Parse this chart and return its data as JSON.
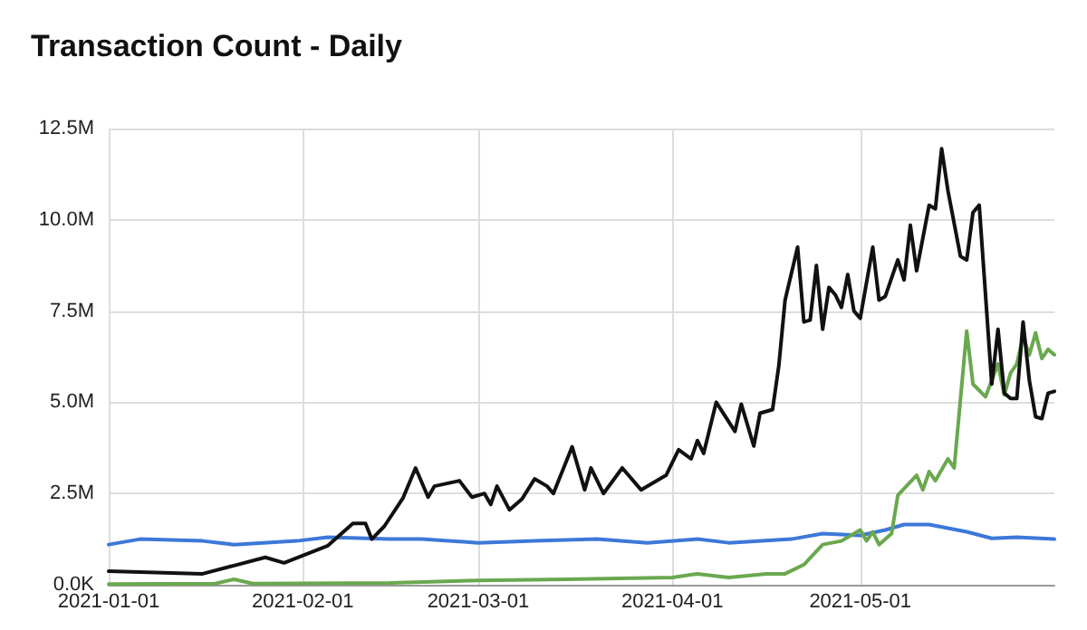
{
  "chart_data": {
    "type": "line",
    "title": "Transaction Count - Daily",
    "xlim": [
      "2021-01-01",
      "2021-06-01"
    ],
    "xticks": [
      "2021-01-01",
      "2021-02-01",
      "2021-03-01",
      "2021-04-01",
      "2021-05-01"
    ],
    "ylim": [
      0,
      12500000
    ],
    "yticks": [
      {
        "value": 0,
        "label": "0.0K"
      },
      {
        "value": 2500000,
        "label": "2.5M"
      },
      {
        "value": 5000000,
        "label": "5.0M"
      },
      {
        "value": 7500000,
        "label": "7.5M"
      },
      {
        "value": 10000000,
        "label": "10.0M"
      },
      {
        "value": 12500000,
        "label": "12.5M"
      }
    ],
    "grid": true,
    "marker": "none",
    "line_style": "solid",
    "series": [
      {
        "color": "#3c78d8",
        "x": [
          "2021-01-01",
          "2021-01-06",
          "2021-01-16",
          "2021-01-21",
          "2021-01-31",
          "2021-02-05",
          "2021-02-15",
          "2021-02-20",
          "2021-03-01",
          "2021-03-10",
          "2021-03-20",
          "2021-03-28",
          "2021-04-05",
          "2021-04-10",
          "2021-04-20",
          "2021-04-25",
          "2021-05-01",
          "2021-05-05",
          "2021-05-08",
          "2021-05-12",
          "2021-05-18",
          "2021-05-22",
          "2021-05-26",
          "2021-06-01"
        ],
        "values": [
          1100000,
          1250000,
          1200000,
          1100000,
          1200000,
          1300000,
          1250000,
          1250000,
          1150000,
          1200000,
          1250000,
          1150000,
          1250000,
          1150000,
          1250000,
          1400000,
          1350000,
          1500000,
          1650000,
          1650000,
          1450000,
          1270000,
          1300000,
          1250000
        ]
      },
      {
        "color": "#6aa84f",
        "x": [
          "2021-01-01",
          "2021-01-18",
          "2021-01-21",
          "2021-01-24",
          "2021-02-15",
          "2021-03-01",
          "2021-03-15",
          "2021-04-01",
          "2021-04-05",
          "2021-04-10",
          "2021-04-16",
          "2021-04-19",
          "2021-04-22",
          "2021-04-25",
          "2021-04-28",
          "2021-05-01",
          "2021-05-02",
          "2021-05-03",
          "2021-05-04",
          "2021-05-06",
          "2021-05-07",
          "2021-05-10",
          "2021-05-11",
          "2021-05-12",
          "2021-05-13",
          "2021-05-15",
          "2021-05-16",
          "2021-05-18",
          "2021-05-19",
          "2021-05-21",
          "2021-05-23",
          "2021-05-24",
          "2021-05-25",
          "2021-05-26",
          "2021-05-27",
          "2021-05-28",
          "2021-05-29",
          "2021-05-30",
          "2021-05-31",
          "2021-06-01"
        ],
        "values": [
          20000,
          30000,
          150000,
          30000,
          50000,
          120000,
          150000,
          200000,
          300000,
          200000,
          300000,
          300000,
          550000,
          1100000,
          1200000,
          1500000,
          1200000,
          1450000,
          1100000,
          1400000,
          2450000,
          3000000,
          2600000,
          3100000,
          2850000,
          3450000,
          3200000,
          6950000,
          5500000,
          5150000,
          6050000,
          5200000,
          5800000,
          6050000,
          6800000,
          6300000,
          6900000,
          6200000,
          6450000,
          6300000
        ]
      },
      {
        "color": "#111111",
        "x": [
          "2021-01-01",
          "2021-01-16",
          "2021-01-26",
          "2021-01-29",
          "2021-02-05",
          "2021-02-09",
          "2021-02-11",
          "2021-02-12",
          "2021-02-14",
          "2021-02-17",
          "2021-02-19",
          "2021-02-21",
          "2021-02-22",
          "2021-02-26",
          "2021-02-28",
          "2021-03-02",
          "2021-03-03",
          "2021-03-04",
          "2021-03-06",
          "2021-03-08",
          "2021-03-10",
          "2021-03-12",
          "2021-03-13",
          "2021-03-16",
          "2021-03-18",
          "2021-03-19",
          "2021-03-21",
          "2021-03-24",
          "2021-03-27",
          "2021-03-31",
          "2021-04-02",
          "2021-04-04",
          "2021-04-05",
          "2021-04-06",
          "2021-04-08",
          "2021-04-11",
          "2021-04-12",
          "2021-04-14",
          "2021-04-15",
          "2021-04-17",
          "2021-04-18",
          "2021-04-19",
          "2021-04-21",
          "2021-04-22",
          "2021-04-23",
          "2021-04-24",
          "2021-04-25",
          "2021-04-26",
          "2021-04-27",
          "2021-04-28",
          "2021-04-29",
          "2021-04-30",
          "2021-05-01",
          "2021-05-03",
          "2021-05-04",
          "2021-05-05",
          "2021-05-07",
          "2021-05-08",
          "2021-05-09",
          "2021-05-10",
          "2021-05-12",
          "2021-05-13",
          "2021-05-14",
          "2021-05-15",
          "2021-05-17",
          "2021-05-18",
          "2021-05-19",
          "2021-05-20",
          "2021-05-22",
          "2021-05-23",
          "2021-05-24",
          "2021-05-25",
          "2021-05-26",
          "2021-05-27",
          "2021-05-28",
          "2021-05-29",
          "2021-05-30",
          "2021-05-31",
          "2021-06-01"
        ],
        "values": [
          370000,
          300000,
          750000,
          600000,
          1070000,
          1680000,
          1680000,
          1250000,
          1600000,
          2380000,
          3200000,
          2400000,
          2700000,
          2850000,
          2400000,
          2500000,
          2200000,
          2700000,
          2050000,
          2350000,
          2900000,
          2700000,
          2500000,
          3780000,
          2600000,
          3200000,
          2500000,
          3200000,
          2600000,
          3000000,
          3700000,
          3450000,
          3950000,
          3600000,
          5000000,
          4200000,
          4950000,
          3800000,
          4700000,
          4800000,
          6000000,
          7800000,
          9250000,
          7200000,
          7250000,
          8750000,
          7000000,
          8150000,
          7950000,
          7600000,
          8500000,
          7500000,
          7300000,
          9250000,
          7800000,
          7900000,
          8900000,
          8350000,
          9850000,
          8600000,
          10400000,
          10300000,
          11950000,
          10800000,
          9000000,
          8900000,
          10200000,
          10400000,
          5500000,
          7000000,
          5250000,
          5100000,
          5100000,
          7200000,
          5600000,
          4600000,
          4550000,
          5250000,
          5300000
        ]
      }
    ]
  }
}
